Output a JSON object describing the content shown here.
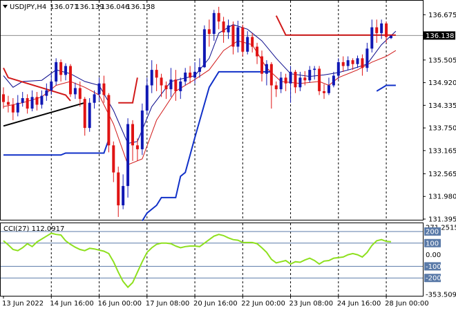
{
  "chart_data": [
    {
      "type": "candlestick",
      "title": "USDJPY,H4",
      "ohlc_header": [
        "136.071",
        "136.139",
        "136.046",
        "136.138"
      ],
      "ylim": [
        131.395,
        137.02
      ],
      "y_ticks": [
        "136.675",
        "135.505",
        "134.920",
        "134.335",
        "133.750",
        "133.165",
        "132.565",
        "131.980",
        "131.395"
      ],
      "current_price": "136.138",
      "x_ticks": [
        "13 Jun 2022",
        "14 Jun 16:00",
        "16 Jun 00:00",
        "17 Jun 08:00",
        "20 Jun 16:00",
        "22 Jun 00:00",
        "23 Jun 08:00",
        "24 Jun 16:00",
        "28 Jun 00:00"
      ],
      "candles": [
        [
          134.62,
          134.42,
          134.8,
          134.25
        ],
        [
          134.42,
          134.35,
          134.58,
          134.15
        ],
        [
          134.35,
          134.15,
          134.52,
          133.95
        ],
        [
          134.15,
          134.4,
          134.6,
          134.05
        ],
        [
          134.4,
          134.52,
          134.68,
          134.3
        ],
        [
          134.52,
          134.25,
          134.62,
          134.12
        ],
        [
          134.25,
          134.55,
          134.72,
          134.18
        ],
        [
          134.55,
          134.35,
          134.68,
          134.2
        ],
        [
          134.35,
          134.58,
          134.72,
          134.25
        ],
        [
          134.58,
          134.72,
          134.9,
          134.45
        ],
        [
          134.72,
          134.95,
          135.15,
          134.6
        ],
        [
          134.95,
          135.45,
          135.55,
          134.85
        ],
        [
          135.45,
          135.12,
          135.52,
          134.95
        ],
        [
          135.12,
          135.35,
          135.42,
          134.98
        ],
        [
          135.35,
          134.62,
          135.4,
          134.55
        ],
        [
          134.62,
          134.78,
          134.92,
          134.5
        ],
        [
          134.78,
          134.5,
          134.95,
          134.3
        ],
        [
          134.5,
          133.75,
          134.55,
          133.55
        ],
        [
          133.75,
          134.4,
          134.52,
          133.65
        ],
        [
          134.4,
          134.62,
          134.72,
          134.25
        ],
        [
          134.62,
          134.9,
          135.05,
          134.45
        ],
        [
          134.9,
          134.6,
          135.1,
          134.4
        ],
        [
          134.6,
          133.3,
          134.65,
          133.12
        ],
        [
          133.3,
          132.6,
          133.4,
          132.35
        ],
        [
          132.6,
          131.75,
          132.75,
          131.45
        ],
        [
          131.75,
          132.25,
          132.55,
          131.65
        ],
        [
          132.25,
          133.85,
          134.0,
          131.95
        ],
        [
          133.85,
          133.3,
          133.95,
          132.9
        ],
        [
          133.3,
          133.2,
          133.48,
          132.9
        ],
        [
          133.2,
          134.2,
          134.38,
          133.05
        ],
        [
          134.2,
          134.85,
          135.05,
          134.1
        ],
        [
          134.85,
          135.25,
          135.5,
          134.65
        ],
        [
          135.25,
          135.05,
          135.4,
          134.7
        ],
        [
          135.05,
          134.85,
          135.15,
          134.55
        ],
        [
          134.85,
          134.75,
          134.95,
          134.5
        ],
        [
          134.75,
          135.0,
          135.3,
          134.55
        ],
        [
          135.0,
          134.7,
          135.25,
          134.45
        ],
        [
          134.7,
          134.95,
          135.05,
          134.5
        ],
        [
          134.95,
          135.18,
          135.3,
          134.85
        ],
        [
          135.18,
          135.05,
          135.35,
          134.9
        ],
        [
          135.05,
          135.2,
          135.45,
          134.9
        ],
        [
          135.2,
          135.32,
          135.55,
          135.05
        ],
        [
          135.32,
          136.3,
          136.4,
          135.3
        ],
        [
          136.3,
          136.18,
          136.55,
          135.85
        ],
        [
          136.18,
          136.72,
          136.8,
          136.0
        ],
        [
          136.72,
          136.5,
          136.88,
          136.3
        ],
        [
          136.5,
          136.22,
          136.62,
          135.95
        ],
        [
          136.22,
          136.4,
          136.55,
          136.05
        ],
        [
          136.4,
          135.85,
          136.5,
          135.65
        ],
        [
          135.85,
          136.35,
          136.52,
          135.7
        ],
        [
          136.35,
          135.72,
          136.42,
          135.6
        ],
        [
          135.72,
          136.1,
          136.25,
          135.65
        ],
        [
          136.1,
          135.85,
          136.2,
          135.7
        ],
        [
          135.85,
          135.6,
          135.95,
          135.4
        ],
        [
          135.6,
          135.15,
          135.75,
          134.95
        ],
        [
          135.15,
          135.4,
          135.5,
          134.85
        ],
        [
          135.4,
          134.85,
          135.45,
          134.25
        ],
        [
          134.85,
          134.75,
          134.95,
          134.55
        ],
        [
          134.75,
          135.05,
          135.2,
          134.65
        ],
        [
          135.05,
          134.9,
          135.15,
          134.7
        ],
        [
          134.9,
          135.2,
          135.35,
          134.4
        ],
        [
          135.2,
          134.8,
          135.25,
          134.65
        ],
        [
          134.8,
          135.05,
          135.2,
          134.7
        ],
        [
          135.05,
          134.98,
          135.22,
          134.85
        ],
        [
          134.98,
          135.25,
          135.35,
          134.92
        ],
        [
          135.25,
          135.28,
          135.35,
          135.0
        ],
        [
          135.28,
          134.7,
          135.35,
          134.6
        ],
        [
          134.7,
          134.65,
          134.88,
          134.5
        ],
        [
          134.65,
          134.85,
          135.05,
          134.6
        ],
        [
          134.85,
          135.1,
          135.2,
          134.8
        ],
        [
          135.1,
          135.45,
          135.55,
          135.0
        ],
        [
          135.45,
          135.35,
          135.6,
          135.2
        ],
        [
          135.35,
          135.5,
          135.6,
          135.25
        ],
        [
          135.5,
          135.4,
          135.55,
          135.25
        ],
        [
          135.4,
          135.55,
          135.62,
          135.3
        ],
        [
          135.55,
          135.3,
          135.65,
          135.1
        ],
        [
          135.3,
          135.8,
          135.95,
          135.2
        ],
        [
          135.8,
          136.35,
          136.55,
          135.7
        ],
        [
          136.35,
          136.2,
          136.55,
          135.95
        ],
        [
          136.2,
          136.45,
          136.55,
          136.05
        ],
        [
          136.45,
          136.1,
          136.5,
          135.95
        ],
        [
          136.071,
          136.138,
          136.139,
          136.046
        ]
      ],
      "overlays": [
        {
          "style": "navy-thin",
          "points": [
            [
              0,
              135.1
            ],
            [
              2,
              134.8
            ],
            [
              4,
              134.95
            ],
            [
              8,
              134.98
            ],
            [
              11,
              135.25
            ],
            [
              14,
              135.15
            ],
            [
              17,
              134.95
            ],
            [
              20,
              134.85
            ],
            [
              23,
              134.2
            ],
            [
              26,
              133.35
            ],
            [
              28,
              133.4
            ],
            [
              31,
              134.3
            ],
            [
              35,
              134.95
            ],
            [
              40,
              135.1
            ],
            [
              43,
              135.55
            ],
            [
              45,
              136.2
            ],
            [
              48,
              136.42
            ],
            [
              51,
              136.3
            ],
            [
              54,
              136.0
            ],
            [
              57,
              135.55
            ],
            [
              60,
              135.15
            ],
            [
              64,
              135.08
            ],
            [
              67,
              135.12
            ],
            [
              70,
              135.18
            ],
            [
              73,
              135.28
            ],
            [
              76,
              135.4
            ],
            [
              79,
              135.9
            ],
            [
              82,
              136.25
            ]
          ]
        },
        {
          "style": "red-thin",
          "points": [
            [
              0,
              134.3
            ],
            [
              4,
              134.4
            ],
            [
              8,
              134.55
            ],
            [
              11,
              134.85
            ],
            [
              14,
              134.95
            ],
            [
              17,
              134.8
            ],
            [
              20,
              134.6
            ],
            [
              23,
              133.85
            ],
            [
              26,
              132.8
            ],
            [
              29,
              132.95
            ],
            [
              32,
              133.95
            ],
            [
              36,
              134.7
            ],
            [
              40,
              135.0
            ],
            [
              43,
              135.25
            ],
            [
              46,
              135.75
            ],
            [
              49,
              136.0
            ],
            [
              52,
              135.9
            ],
            [
              55,
              135.3
            ],
            [
              58,
              134.95
            ],
            [
              62,
              134.9
            ],
            [
              66,
              134.95
            ],
            [
              68,
              134.85
            ],
            [
              70,
              135.05
            ],
            [
              74,
              135.25
            ],
            [
              77,
              135.45
            ],
            [
              80,
              135.6
            ],
            [
              82,
              135.75
            ]
          ]
        },
        {
          "style": "red-thick",
          "points": [
            [
              0,
              135.3
            ],
            [
              1,
              135.05
            ],
            [
              13,
              134.6
            ],
            [
              14,
              134.45
            ]
          ]
        },
        {
          "style": "red-thick",
          "points": [
            [
              24,
              134.4
            ],
            [
              27,
              134.4
            ],
            [
              28,
              135.05
            ]
          ]
        },
        {
          "style": "red-thick",
          "points": [
            [
              57,
              136.65
            ],
            [
              59,
              136.15
            ],
            [
              79,
              136.15
            ],
            [
              82,
              136.15
            ]
          ]
        },
        {
          "style": "blue-thick",
          "points": [
            [
              0,
              133.05
            ],
            [
              12,
              133.05
            ],
            [
              13,
              133.1
            ],
            [
              21,
              133.1
            ],
            [
              22,
              133.45
            ]
          ]
        },
        {
          "style": "blue-thick",
          "points": [
            [
              29,
              131.35
            ],
            [
              30,
              131.55
            ],
            [
              32,
              131.75
            ],
            [
              33,
              131.95
            ],
            [
              36,
              131.95
            ],
            [
              37,
              132.5
            ],
            [
              38,
              132.6
            ],
            [
              40,
              133.5
            ],
            [
              43,
              134.8
            ],
            [
              45,
              135.2
            ],
            [
              56,
              135.2
            ]
          ]
        },
        {
          "style": "blue-thick",
          "points": [
            [
              78,
              134.7
            ],
            [
              80,
              134.85
            ],
            [
              82,
              134.85
            ]
          ]
        },
        {
          "style": "black-thick",
          "points": [
            [
              0,
              133.8
            ],
            [
              17,
              134.4
            ]
          ]
        }
      ]
    },
    {
      "type": "line",
      "title": "CCI(27) 112.0917",
      "series": [
        {
          "values": [
            120,
            85,
            45,
            35,
            60,
            95,
            70,
            110,
            135,
            160,
            185,
            175,
            170,
            120,
            90,
            65,
            45,
            35,
            55,
            50,
            40,
            30,
            10,
            -60,
            -150,
            -230,
            -280,
            -240,
            -150,
            -60,
            20,
            60,
            90,
            100,
            100,
            95,
            75,
            60,
            70,
            75,
            75,
            70,
            100,
            130,
            160,
            175,
            165,
            145,
            130,
            125,
            105,
            105,
            105,
            95,
            60,
            20,
            -40,
            -70,
            -60,
            -50,
            -80,
            -60,
            -65,
            -45,
            -30,
            -50,
            -80,
            -55,
            -50,
            -30,
            -25,
            -20,
            0,
            10,
            0,
            -20,
            20,
            80,
            120,
            130,
            115,
            112
          ]
        }
      ],
      "ylim": [
        -353.5092,
        271.2515
      ],
      "y_ticks": [
        "271.2515",
        "200",
        "100",
        "0.00",
        "-100",
        "-200",
        "-353.5092"
      ],
      "highlighted_ticks": [
        "200",
        "100",
        "-100",
        "-200"
      ]
    }
  ]
}
